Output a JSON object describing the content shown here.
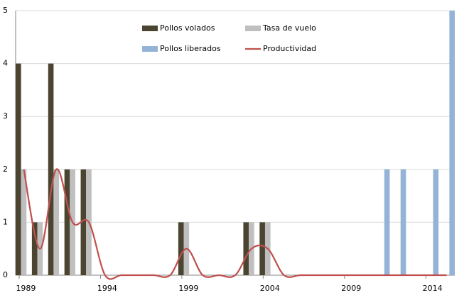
{
  "chart_data": {
    "type": "bar",
    "categories": [
      "1989",
      null,
      null,
      null,
      null,
      "1994",
      null,
      null,
      null,
      null,
      "1999",
      null,
      null,
      null,
      null,
      "2004",
      null,
      null,
      null,
      null,
      "2009",
      null,
      null,
      null,
      null,
      "2014",
      null
    ],
    "series": [
      {
        "name": "Pollos volados",
        "color": "#4a4430",
        "type": "bar",
        "values": [
          4,
          1,
          4,
          2,
          2,
          0,
          0,
          0,
          0,
          0,
          1,
          0,
          0,
          0,
          1,
          1,
          0,
          0,
          0,
          0,
          0,
          0,
          0,
          0,
          0,
          0,
          0
        ]
      },
      {
        "name": "Tasa de vuelo",
        "color": "#bfbfbf",
        "type": "bar",
        "values": [
          2,
          1,
          2,
          2,
          2,
          0,
          0,
          0,
          0,
          0,
          1,
          0,
          0,
          0,
          1,
          1,
          0,
          0,
          0,
          0,
          0,
          0,
          0,
          0,
          0,
          0,
          0
        ]
      },
      {
        "name": "Pollos liberados",
        "color": "#95b3d7",
        "type": "bar",
        "values": [
          0,
          0,
          0,
          0,
          0,
          0,
          0,
          0,
          0,
          0,
          0,
          0,
          0,
          0,
          0,
          0,
          0,
          0,
          0,
          0,
          0,
          0,
          2,
          2,
          0,
          2,
          5
        ]
      },
      {
        "name": "Productividad",
        "color": "#c0504d",
        "type": "line",
        "values": [
          2,
          0.5,
          2,
          1,
          1,
          0,
          0,
          0,
          0,
          0,
          0.5,
          0,
          0,
          0,
          0.5,
          0.5,
          0,
          0,
          0,
          0,
          0,
          0,
          0,
          0,
          0,
          0,
          0
        ]
      }
    ],
    "ylim": [
      0,
      5
    ],
    "yticks": [
      0,
      1,
      2,
      3,
      4,
      5
    ],
    "grid": true
  }
}
